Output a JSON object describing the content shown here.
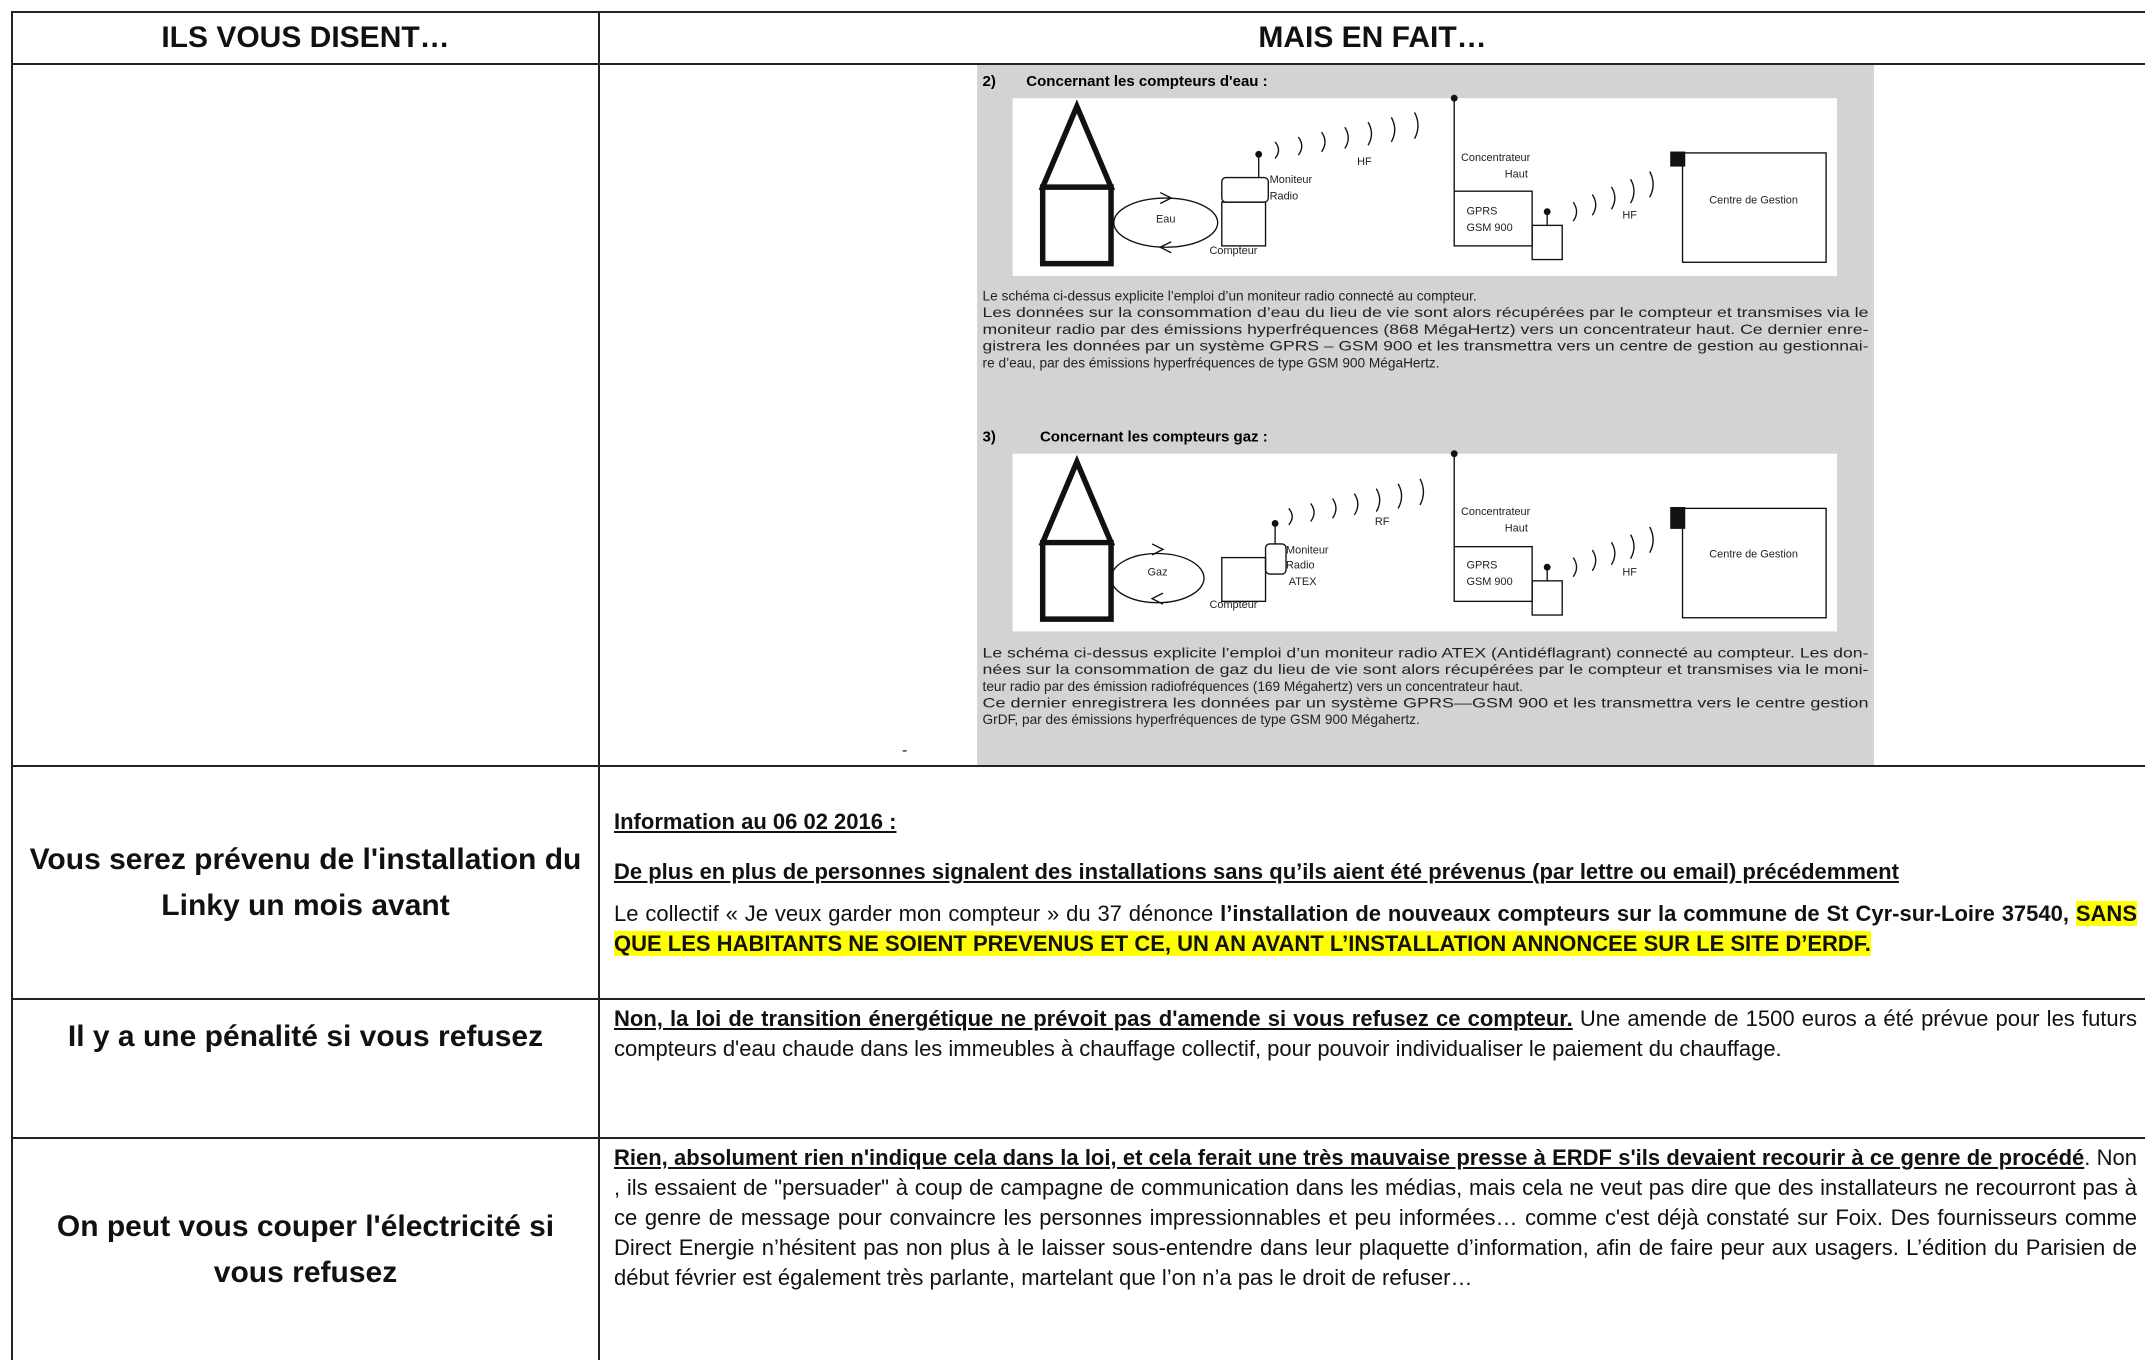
{
  "table": {
    "header": [
      "ILS VOUS DISENT…",
      "MAIS EN FAIT…"
    ],
    "rows": [
      {
        "left": "",
        "right": {
          "figure": {
            "sections": [
              {
                "number": "2)",
                "heading": "Concernant les compteurs d'eau :",
                "labels": [
                  "Moniteur",
                  "Radio",
                  "HF",
                  "Concentrateur",
                  "Haut",
                  "GPRS",
                  "GSM 900",
                  "HF",
                  "Centre de Gestion",
                  "Eau",
                  "Compteur"
                ],
                "caption": [
                  "Le schéma ci-dessus explicite l’emploi d’un moniteur radio connecté au compteur.",
                  "Les données sur la consommation d’eau du lieu de vie sont alors récupérées par le compteur et transmises via le",
                  "moniteur radio par des émissions hyperfréquences (868 MégaHertz) vers un concentrateur haut. Ce dernier enre-",
                  "gistrera les données par un système GPRS – GSM 900 et les transmettra vers un centre de gestion au gestionnai-",
                  "re d’eau, par des émissions hyperfréquences de type GSM 900 MégaHertz."
                ]
              },
              {
                "number": "3)",
                "heading": "Concernant les compteurs gaz :",
                "labels": [
                  "RF",
                  "Moniteur",
                  "Radio",
                  "ATEX",
                  "Concentrateur",
                  "Haut",
                  "GPRS",
                  "GSM 900",
                  "HF",
                  "Centre de Gestion",
                  "Gaz",
                  "Compteur"
                ],
                "caption": [
                  "Le schéma ci-dessus explicite l’emploi d’un moniteur radio ATEX  (Antidéflagrant) connecté au compteur. Les don-",
                  "nées sur la consommation de gaz du lieu de vie sont alors récupérées par le compteur et transmises via le moni-",
                  "teur radio par des émission radiofréquences (169 Mégahertz) vers un concentrateur haut.",
                  "Ce dernier enregistrera les données par un système GPRS—GSM 900 et les transmettra vers le centre gestion",
                  "GrDF, par des émissions hyperfréquences de type GSM 900 Mégahertz."
                ]
              }
            ]
          },
          "mark": "-"
        }
      },
      {
        "left": "Vous serez prévenu de l'installation du Linky un mois avant",
        "right": {
          "paragraphs": [
            [
              "Information au 06 02 2016 :"
            ],
            [
              "De plus en plus de personnes signalent des installations sans qu’ils aient été prévenus (par lettre ou email) précédemment"
            ],
            [
              "Le collectif « Je veux garder mon compteur » du 37 dénonce ",
              "l’installation de nouveaux compteurs sur la commune de St Cyr-sur-Loire 37540, ",
              "SANS QUE LES HABITANTS NE SOIENT PREVENUS ET CE, UN AN AVANT L’INSTALLATION ANNONCEE SUR LE SITE D’ERDF."
            ]
          ]
        }
      },
      {
        "left": "Il y a une pénalité si vous refusez",
        "right": {
          "paragraphs": [
            [
              "Non, la loi de transition énergétique ne prévoit pas d'amende si vous refusez ce compteur.",
              " Une amende de 1500 euros a été prévue pour les futurs compteurs d'eau chaude dans les immeubles à chauffage collectif, pour pouvoir individualiser le paiement du chauffage."
            ]
          ]
        }
      },
      {
        "left": "On peut vous couper l'électricité si vous refusez",
        "right": {
          "paragraphs": [
            [
              "Rien, absolument rien n'indique cela dans la loi, et cela ferait une très mauvaise presse à ERDF s'ils devaient recourir à ce genre de procédé",
              ". Non , ils essaient de \"persuader\" à coup de campagne de communication dans les médias, mais cela ne veut pas dire que des installateurs ne recourront pas à ce genre de message pour convaincre les personnes impressionnables et peu informées… comme c'est déjà constaté sur Foix. Des fournisseurs comme Direct Energie n’hésitent pas non plus à le laisser sous-entendre dans leur plaquette d’information, afin de faire peur aux usagers. L’édition du Parisien de début février est également très parlante, martelant que l’on n’a pas le droit de refuser…"
            ]
          ]
        }
      }
    ]
  }
}
